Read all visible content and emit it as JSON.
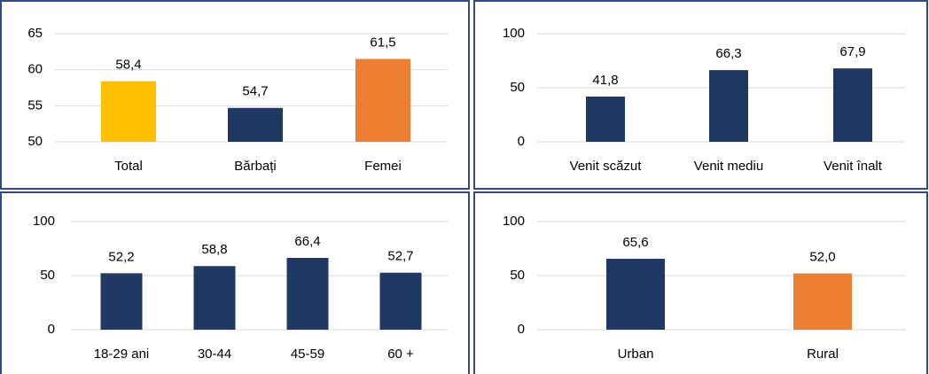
{
  "chart_data": [
    {
      "type": "bar",
      "categories": [
        "Total",
        "Bărbați",
        "Femei"
      ],
      "values": [
        58.4,
        54.7,
        61.5
      ],
      "value_labels": [
        "58,4",
        "54,7",
        "61,5"
      ],
      "colors": [
        "#ffc000",
        "#203864",
        "#ed7d31"
      ],
      "ylim": [
        50,
        65
      ],
      "yticks": [
        50,
        55,
        60,
        65
      ],
      "grid": true
    },
    {
      "type": "bar",
      "categories": [
        "Venit scăzut",
        "Venit mediu",
        "Venit înalt"
      ],
      "values": [
        41.8,
        66.3,
        67.9
      ],
      "value_labels": [
        "41,8",
        "66,3",
        "67,9"
      ],
      "colors": [
        "#203864",
        "#203864",
        "#203864"
      ],
      "ylim": [
        0,
        100
      ],
      "yticks": [
        0,
        50,
        100
      ],
      "grid": true
    },
    {
      "type": "bar",
      "categories": [
        "18-29 ani",
        "30-44",
        "45-59",
        "60 +"
      ],
      "values": [
        52.2,
        58.8,
        66.4,
        52.7
      ],
      "value_labels": [
        "52,2",
        "58,8",
        "66,4",
        "52,7"
      ],
      "colors": [
        "#203864",
        "#203864",
        "#203864",
        "#203864"
      ],
      "ylim": [
        0,
        100
      ],
      "yticks": [
        0,
        50,
        100
      ],
      "grid": true
    },
    {
      "type": "bar",
      "categories": [
        "Urban",
        "Rural"
      ],
      "values": [
        65.6,
        52.0
      ],
      "value_labels": [
        "65,6",
        "52,0"
      ],
      "colors": [
        "#203864",
        "#ed7d31"
      ],
      "ylim": [
        0,
        100
      ],
      "yticks": [
        0,
        50,
        100
      ],
      "grid": true
    }
  ]
}
